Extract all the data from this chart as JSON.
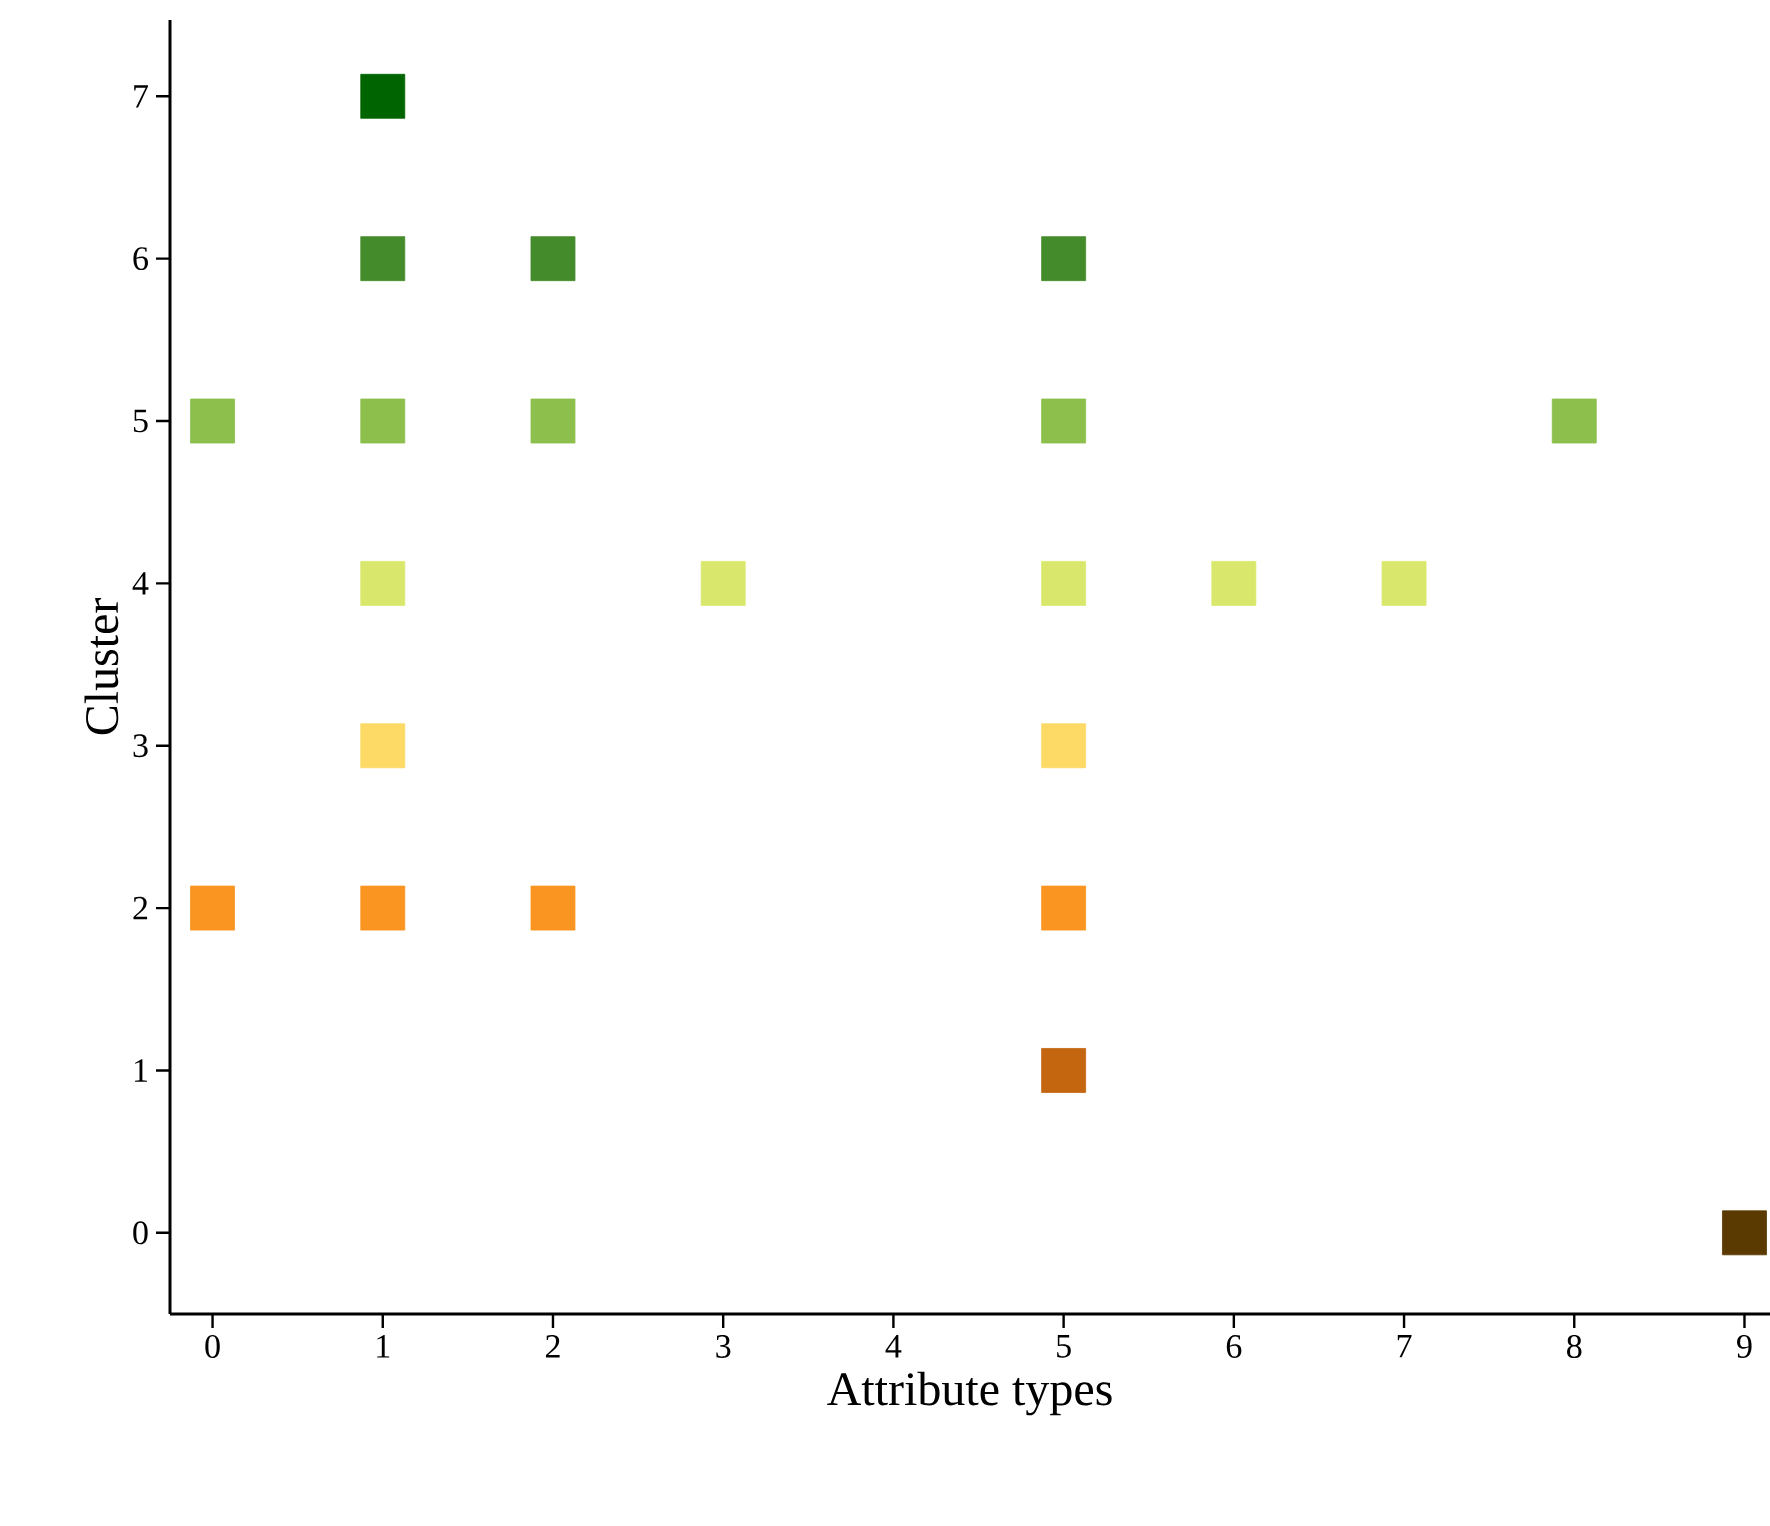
{
  "chart_data": {
    "type": "scatter",
    "xlabel": "Attribute types",
    "ylabel": "Cluster",
    "x": [
      1,
      1,
      2,
      5,
      0,
      1,
      2,
      5,
      8,
      1,
      3,
      5,
      6,
      7,
      1,
      5,
      0,
      1,
      2,
      5,
      5,
      9
    ],
    "values": [
      7,
      6,
      6,
      6,
      5,
      5,
      5,
      5,
      5,
      4,
      4,
      4,
      4,
      4,
      3,
      3,
      2,
      2,
      2,
      2,
      1,
      0
    ],
    "colors": [
      "#006400",
      "#448c2b",
      "#448c2b",
      "#448c2b",
      "#8cbf4c",
      "#8cbf4c",
      "#8cbf4c",
      "#8cbf4c",
      "#8cbf4c",
      "#d9e86c",
      "#d9e86c",
      "#d9e86c",
      "#d9e86c",
      "#d9e86c",
      "#fdd966",
      "#fdd966",
      "#fb9522",
      "#fb9522",
      "#fb9522",
      "#fb9522",
      "#c46510",
      "#5a3a00"
    ],
    "marker": "square",
    "xlim": [
      -0.25,
      9.15
    ],
    "ylim": [
      -0.5,
      7.47
    ],
    "xticks": [
      0,
      1,
      2,
      3,
      4,
      5,
      6,
      7,
      8,
      9
    ],
    "yticks": [
      0,
      1,
      2,
      3,
      4,
      5,
      6,
      7
    ]
  }
}
